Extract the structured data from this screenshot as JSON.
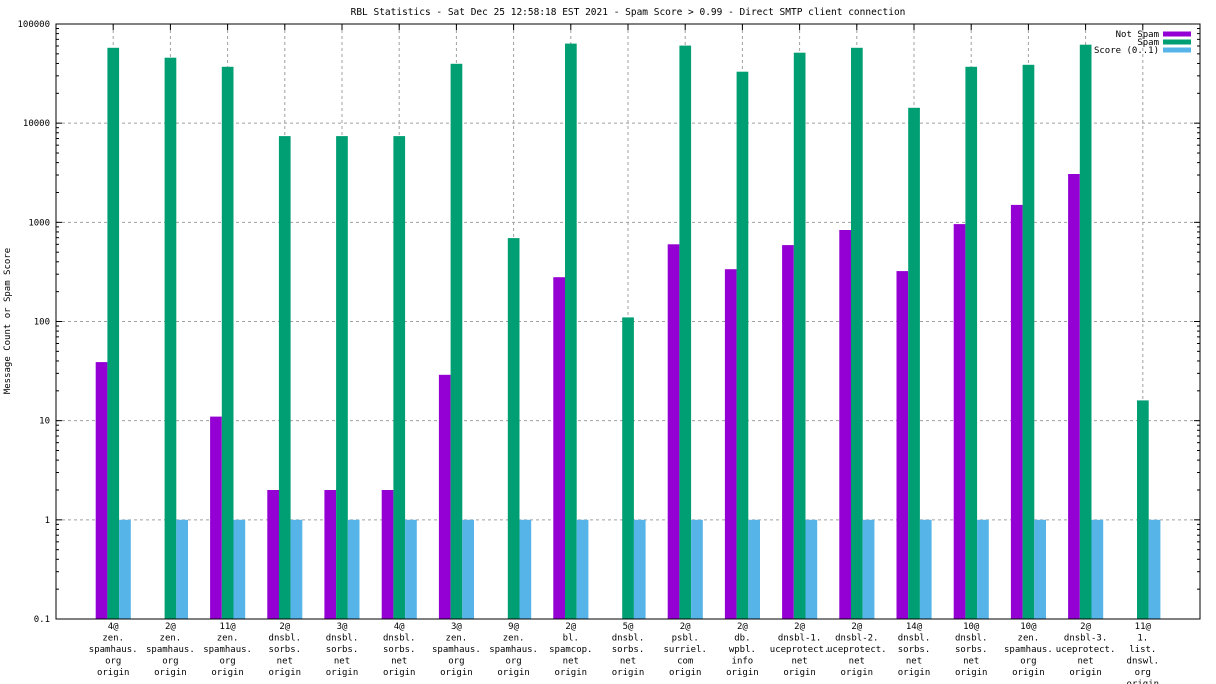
{
  "chart_data": {
    "type": "bar",
    "title": "RBL Statistics - Sat Dec 25 12:58:18 EST 2021 - Spam Score > 0.99 - Direct SMTP client connection",
    "xlabel": "",
    "ylabel": "Message Count or Spam Score",
    "yscale": "log",
    "ylim": [
      0.1,
      100000
    ],
    "yticks": [
      0.1,
      1,
      10,
      100,
      1000,
      10000,
      100000
    ],
    "ytick_labels": [
      "0.1",
      "1",
      "10",
      "100",
      "1000",
      "10000",
      "100000"
    ],
    "grid": true,
    "legend_position": "top-right",
    "categories": [
      [
        "4@",
        "zen.",
        "spamhaus.",
        "org",
        "origin"
      ],
      [
        "2@",
        "zen.",
        "spamhaus.",
        "org",
        "origin"
      ],
      [
        "11@",
        "zen.",
        "spamhaus.",
        "org",
        "origin"
      ],
      [
        "2@",
        "dnsbl.",
        "sorbs.",
        "net",
        "origin"
      ],
      [
        "3@",
        "dnsbl.",
        "sorbs.",
        "net",
        "origin"
      ],
      [
        "4@",
        "dnsbl.",
        "sorbs.",
        "net",
        "origin"
      ],
      [
        "3@",
        "zen.",
        "spamhaus.",
        "org",
        "origin"
      ],
      [
        "9@",
        "zen.",
        "spamhaus.",
        "org",
        "origin"
      ],
      [
        "2@",
        "bl.",
        "spamcop.",
        "net",
        "origin"
      ],
      [
        "5@",
        "dnsbl.",
        "sorbs.",
        "net",
        "origin"
      ],
      [
        "2@",
        "psbl.",
        "surriel.",
        "com",
        "origin"
      ],
      [
        "2@",
        "db.",
        "wpbl.",
        "info",
        "origin"
      ],
      [
        "2@",
        "dnsbl-1.",
        "uceprotect.",
        "net",
        "origin"
      ],
      [
        "2@",
        "dnsbl-2.",
        "uceprotect.",
        "net",
        "origin"
      ],
      [
        "14@",
        "dnsbl.",
        "sorbs.",
        "net",
        "origin"
      ],
      [
        "10@",
        "dnsbl.",
        "sorbs.",
        "net",
        "origin"
      ],
      [
        "10@",
        "zen.",
        "spamhaus.",
        "org",
        "origin"
      ],
      [
        "2@",
        "dnsbl-3.",
        "uceprotect.",
        "net",
        "origin"
      ],
      [
        "11@",
        "1.",
        "list.",
        "dnswl.",
        "org",
        "origin"
      ]
    ],
    "series": [
      {
        "name": "Not Spam",
        "color": "#9400d3",
        "values": [
          39,
          0,
          11,
          2,
          2,
          2,
          29,
          0,
          280,
          0,
          600,
          337,
          590,
          836,
          322,
          960,
          1500,
          3070,
          0
        ]
      },
      {
        "name": "Spam",
        "color": "#009e73",
        "values": [
          57500,
          45700,
          37000,
          7400,
          7400,
          7400,
          39700,
          693,
          63400,
          110,
          60500,
          33000,
          51300,
          57500,
          14300,
          37000,
          38800,
          61800,
          16
        ]
      },
      {
        "name": "Score (0..1)",
        "color": "#56b4e9",
        "values": [
          1,
          1,
          1,
          1,
          1,
          1,
          1,
          1,
          1,
          1,
          1,
          1,
          1,
          1,
          1,
          1,
          1,
          1,
          1
        ]
      }
    ]
  }
}
